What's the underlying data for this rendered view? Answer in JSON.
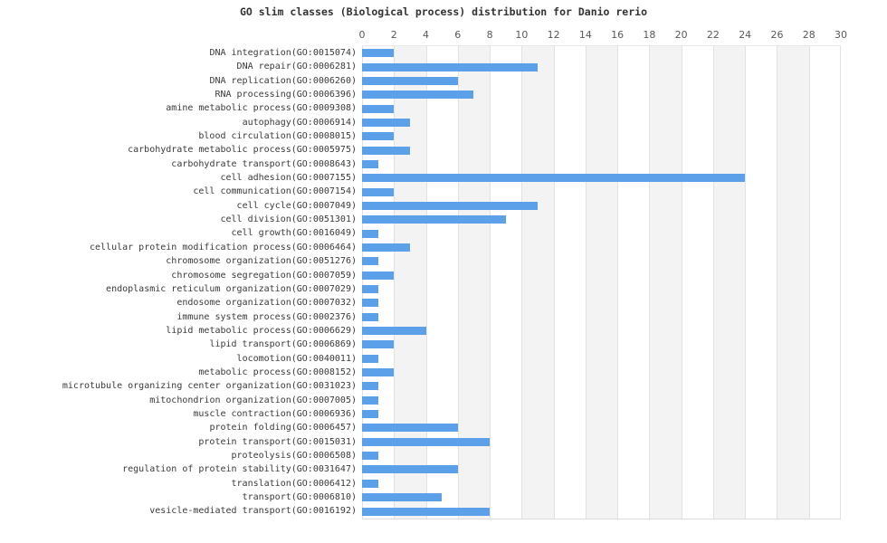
{
  "title": "GO slim classes (Biological process) distribution for Danio rerio",
  "chart_data": {
    "type": "bar",
    "orientation": "horizontal",
    "title": "GO slim classes (Biological process) distribution for Danio rerio",
    "xlabel": "",
    "ylabel": "",
    "legend": null,
    "grid": true,
    "axis": {
      "position": "top",
      "min": 0,
      "max": 30,
      "tick_step": 2,
      "tick_labels": [
        "0",
        "2",
        "4",
        "6",
        "8",
        "10",
        "12",
        "14",
        "16",
        "18",
        "20",
        "22",
        "24",
        "26",
        "28",
        "30"
      ]
    },
    "categories": [
      "DNA integration(GO:0015074)",
      "DNA repair(GO:0006281)",
      "DNA replication(GO:0006260)",
      "RNA processing(GO:0006396)",
      "amine metabolic process(GO:0009308)",
      "autophagy(GO:0006914)",
      "blood circulation(GO:0008015)",
      "carbohydrate metabolic process(GO:0005975)",
      "carbohydrate transport(GO:0008643)",
      "cell adhesion(GO:0007155)",
      "cell communication(GO:0007154)",
      "cell cycle(GO:0007049)",
      "cell division(GO:0051301)",
      "cell growth(GO:0016049)",
      "cellular protein modification process(GO:0006464)",
      "chromosome organization(GO:0051276)",
      "chromosome segregation(GO:0007059)",
      "endoplasmic reticulum organization(GO:0007029)",
      "endosome organization(GO:0007032)",
      "immune system process(GO:0002376)",
      "lipid metabolic process(GO:0006629)",
      "lipid transport(GO:0006869)",
      "locomotion(GO:0040011)",
      "metabolic process(GO:0008152)",
      "microtubule organizing center organization(GO:0031023)",
      "mitochondrion organization(GO:0007005)",
      "muscle contraction(GO:0006936)",
      "protein folding(GO:0006457)",
      "protein transport(GO:0015031)",
      "proteolysis(GO:0006508)",
      "regulation of protein stability(GO:0031647)",
      "translation(GO:0006412)",
      "transport(GO:0006810)",
      "vesicle-mediated transport(GO:0016192)"
    ],
    "values": [
      2,
      11,
      6,
      7,
      2,
      3,
      2,
      3,
      1,
      24,
      2,
      11,
      9,
      1,
      3,
      1,
      2,
      1,
      1,
      1,
      4,
      2,
      1,
      2,
      1,
      1,
      1,
      6,
      8,
      1,
      6,
      1,
      5,
      8
    ],
    "colors": {
      "bar": "#5CA0E9",
      "band": "#f3f3f3",
      "gridline": "#e2e2e2",
      "tick_text": "#595959",
      "label_text": "#3a3a3a",
      "title_text": "#333333",
      "background": "#ffffff"
    }
  }
}
